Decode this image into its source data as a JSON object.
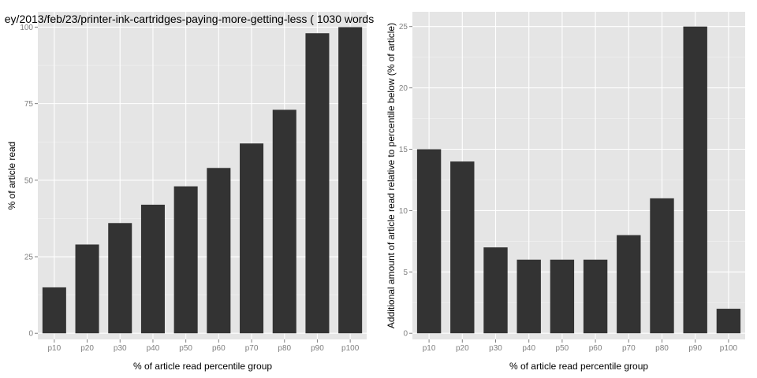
{
  "chart_data": [
    {
      "type": "bar",
      "title": "ey/2013/feb/23/printer-ink-cartridges-paying-more-getting-less ( 1030 words",
      "xlabel": "% of article read percentile group",
      "ylabel": "% of article read",
      "categories": [
        "p10",
        "p20",
        "p30",
        "p40",
        "p50",
        "p60",
        "p70",
        "p80",
        "p90",
        "p100"
      ],
      "values": [
        15,
        29,
        36,
        42,
        48,
        54,
        62,
        73,
        98,
        100
      ],
      "ylim": [
        -2,
        105
      ],
      "yticks": [
        0,
        25,
        50,
        75,
        100
      ],
      "grid": true
    },
    {
      "type": "bar",
      "title": "",
      "xlabel": "% of article read percentile group",
      "ylabel": "Additional amount of article read relative to percentile below (% of article)",
      "categories": [
        "p10",
        "p20",
        "p30",
        "p40",
        "p50",
        "p60",
        "p70",
        "p80",
        "p90",
        "p100"
      ],
      "values": [
        15,
        14,
        7,
        6,
        6,
        6,
        8,
        11,
        25,
        2
      ],
      "ylim": [
        -0.5,
        26.2
      ],
      "yticks": [
        0,
        5,
        10,
        15,
        20,
        25
      ],
      "grid": true
    }
  ],
  "colors": {
    "bar": "#333333",
    "panel": "#e5e5e5",
    "grid": "#ffffff"
  }
}
